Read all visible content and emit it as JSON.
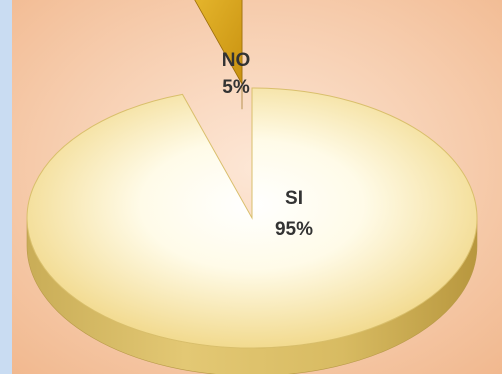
{
  "chart_data": {
    "type": "pie",
    "style": "3d-exploded",
    "slices": [
      {
        "label": "SI",
        "percent_label": "95%",
        "value": 95,
        "color": "#f3dc8f"
      },
      {
        "label": "NO",
        "percent_label": "5%",
        "value": 5,
        "color": "#e6b422"
      }
    ]
  },
  "colors": {
    "frame": "#c9dcf2",
    "panel_background": "#f4c9a6",
    "label_text": "#333333"
  }
}
